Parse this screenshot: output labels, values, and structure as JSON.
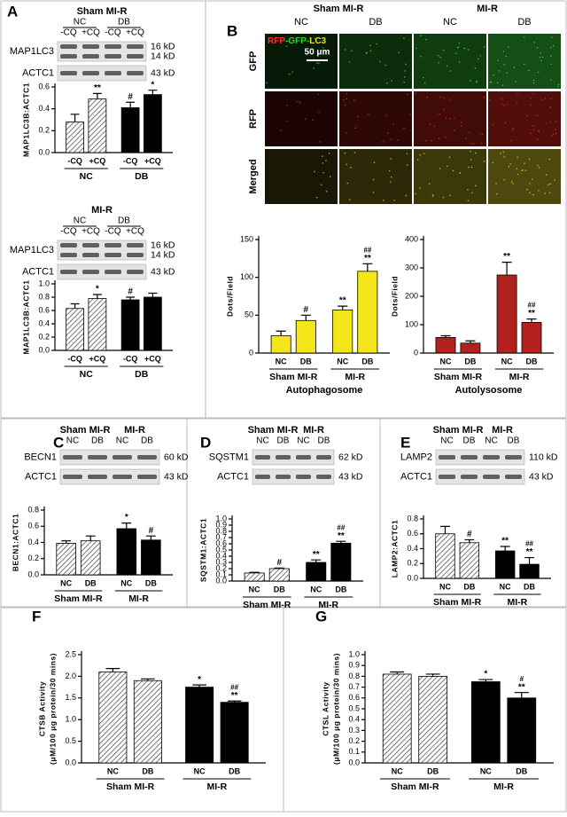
{
  "chart_data": [
    {
      "type": "bar",
      "panel": "A",
      "ylabel": [
        "MAP1LC3B:ACTC1"
      ],
      "blot": {
        "header_rows": [
          [
            "Sham MI-R"
          ],
          [
            "NC",
            "DB"
          ],
          [
            "-CQ",
            "+CQ",
            "-CQ",
            "+CQ"
          ]
        ],
        "rows": [
          {
            "name": "MAP1LC3",
            "kd": [
              "16 kD",
              "14 kD"
            ]
          },
          {
            "name": "ACTC1",
            "kd": [
              "43 kD"
            ]
          }
        ]
      },
      "categories": [
        "-CQ",
        "+CQ",
        "-CQ",
        "+CQ"
      ],
      "groups": [
        "NC",
        "DB"
      ],
      "values": [
        0.28,
        0.49,
        0.41,
        0.53
      ],
      "errors": [
        0.07,
        0.05,
        0.05,
        0.04
      ],
      "colors": [
        "#ffffff",
        "#ffffff",
        "#000000",
        "#000000"
      ],
      "hatch": [
        true,
        true,
        false,
        false
      ],
      "annotations": [
        [],
        [
          "**"
        ],
        [
          "#"
        ],
        [
          "*"
        ]
      ],
      "ylim": [
        0,
        0.6
      ],
      "yticks": [
        {
          "value": 0,
          "label": "0.0"
        },
        0.2,
        0.4,
        0.6
      ]
    },
    {
      "type": "bar",
      "ylabel": [
        "MAP1LC3B:ACTC1"
      ],
      "blot": {
        "header_rows": [
          [
            "MI-R"
          ],
          [
            "NC",
            "DB"
          ],
          [
            "-CQ",
            "+CQ",
            "-CQ",
            "+CQ"
          ]
        ],
        "rows": [
          {
            "name": "MAP1LC3",
            "kd": [
              "16 kD",
              "14 kD"
            ]
          },
          {
            "name": "ACTC1",
            "kd": [
              "43 kD"
            ]
          }
        ]
      },
      "categories": [
        "-CQ",
        "+CQ",
        "-CQ",
        "+CQ"
      ],
      "groups": [
        "NC",
        "DB"
      ],
      "values": [
        0.63,
        0.78,
        0.76,
        0.8
      ],
      "errors": [
        0.07,
        0.06,
        0.04,
        0.06
      ],
      "colors": [
        "#ffffff",
        "#ffffff",
        "#000000",
        "#000000"
      ],
      "hatch": [
        true,
        true,
        false,
        false
      ],
      "annotations": [
        [],
        [
          "*"
        ],
        [
          "#"
        ],
        []
      ],
      "ylim": [
        0,
        1.0
      ],
      "yticks": [
        {
          "value": 0,
          "label": "0.0"
        },
        0.2,
        0.4,
        0.6,
        0.8,
        {
          "value": 1,
          "label": "1.0"
        }
      ]
    },
    {
      "type": "bar",
      "ylabel": [
        "Dots/Field"
      ],
      "xlabel": "Autophagosome",
      "categories": [
        "NC",
        "DB",
        "NC",
        "DB"
      ],
      "groups": [
        "Sham MI-R",
        "MI-R"
      ],
      "values": [
        23,
        43,
        57,
        108
      ],
      "errors": [
        6,
        7,
        5,
        10
      ],
      "colors": [
        "#f5e51b",
        "#f5e51b",
        "#f5e51b",
        "#f5e51b"
      ],
      "hatch": [
        false,
        false,
        false,
        false
      ],
      "annotations": [
        [],
        [
          "#"
        ],
        [
          "**"
        ],
        [
          "**",
          "##"
        ]
      ],
      "ylim": [
        0,
        150
      ],
      "yticks": [
        0,
        50,
        100,
        150
      ]
    },
    {
      "type": "bar",
      "ylabel": [
        "Dots/Field"
      ],
      "xlabel": "Autolysosome",
      "categories": [
        "NC",
        "DB",
        "NC",
        "DB"
      ],
      "groups": [
        "Sham MI-R",
        "MI-R"
      ],
      "values": [
        55,
        35,
        275,
        108
      ],
      "errors": [
        6,
        8,
        45,
        12
      ],
      "colors": [
        "#b3211f",
        "#b3211f",
        "#b3211f",
        "#b3211f"
      ],
      "hatch": [
        false,
        false,
        false,
        false
      ],
      "annotations": [
        [],
        [],
        [
          "**"
        ],
        [
          "**",
          "##"
        ]
      ],
      "ylim": [
        0,
        400
      ],
      "yticks": [
        0,
        100,
        200,
        300,
        400
      ]
    },
    {
      "type": "bar",
      "panel": "C",
      "ylabel": [
        "BECN1:ACTC1"
      ],
      "blot": {
        "header_rows": [
          [
            "Sham MI-R",
            "MI-R"
          ],
          [
            "NC",
            "DB",
            "NC",
            "DB"
          ]
        ],
        "rows": [
          {
            "name": "BECN1",
            "kd": [
              "60 kD"
            ]
          },
          {
            "name": "ACTC1",
            "kd": [
              "43 kD"
            ]
          }
        ]
      },
      "categories": [
        "NC",
        "DB",
        "NC",
        "DB"
      ],
      "groups": [
        "Sham MI-R",
        "MI-R"
      ],
      "values": [
        0.39,
        0.42,
        0.57,
        0.43
      ],
      "errors": [
        0.03,
        0.06,
        0.07,
        0.05
      ],
      "colors": [
        "#ffffff",
        "#ffffff",
        "#000000",
        "#000000"
      ],
      "hatch": [
        true,
        true,
        false,
        false
      ],
      "annotations": [
        [],
        [],
        [
          "*"
        ],
        [
          "#"
        ]
      ],
      "ylim": [
        0,
        0.8
      ],
      "yticks": [
        {
          "value": 0,
          "label": "0.0"
        },
        0.2,
        0.4,
        0.6,
        0.8
      ]
    },
    {
      "type": "bar",
      "panel": "D",
      "ylabel": [
        "SQSTM1:ACTC1"
      ],
      "blot": {
        "header_rows": [
          [
            "Sham MI-R",
            "MI-R"
          ],
          [
            "NC",
            "DB",
            "NC",
            "DB"
          ]
        ],
        "rows": [
          {
            "name": "SQSTM1",
            "kd": [
              "62 kD"
            ]
          },
          {
            "name": "ACTC1",
            "kd": [
              "43 kD"
            ]
          }
        ]
      },
      "categories": [
        "NC",
        "DB",
        "NC",
        "DB"
      ],
      "groups": [
        "Sham MI-R",
        "MI-R"
      ],
      "values": [
        0.13,
        0.2,
        0.3,
        0.61
      ],
      "errors": [
        0.01,
        0.01,
        0.04,
        0.03
      ],
      "colors": [
        "#ffffff",
        "#ffffff",
        "#000000",
        "#000000"
      ],
      "hatch": [
        true,
        true,
        false,
        false
      ],
      "annotations": [
        [],
        [
          "#"
        ],
        [
          "**"
        ],
        [
          "**",
          "##"
        ]
      ],
      "ylim": [
        0,
        1.0
      ],
      "yticks": [
        {
          "value": 0,
          "label": "0.0"
        },
        0.1,
        0.2,
        0.3,
        0.4,
        0.5,
        0.6,
        0.7,
        0.8,
        0.9,
        {
          "value": 1,
          "label": "1.0"
        }
      ]
    },
    {
      "type": "bar",
      "panel": "E",
      "ylabel": [
        "LAMP2:ACTC1"
      ],
      "blot": {
        "header_rows": [
          [
            "Sham MI-R",
            "MI-R"
          ],
          [
            "NC",
            "DB",
            "NC",
            "DB"
          ]
        ],
        "rows": [
          {
            "name": "LAMP2",
            "kd": [
              "110 kD"
            ]
          },
          {
            "name": "ACTC1",
            "kd": [
              "43 kD"
            ]
          }
        ]
      },
      "categories": [
        "NC",
        "DB",
        "NC",
        "DB"
      ],
      "groups": [
        "Sham MI-R",
        "MI-R"
      ],
      "values": [
        0.6,
        0.48,
        0.37,
        0.19
      ],
      "errors": [
        0.1,
        0.04,
        0.06,
        0.09
      ],
      "colors": [
        "#ffffff",
        "#ffffff",
        "#000000",
        "#000000"
      ],
      "hatch": [
        true,
        true,
        false,
        false
      ],
      "annotations": [
        [],
        [
          "#"
        ],
        [
          "**"
        ],
        [
          "**",
          "##"
        ]
      ],
      "ylim": [
        0,
        0.8
      ],
      "yticks": [
        {
          "value": 0,
          "label": "0.0"
        },
        0.2,
        0.4,
        0.6,
        0.8
      ]
    },
    {
      "type": "bar",
      "panel": "F",
      "ylabel": [
        "CTSB Activity",
        "(μM/100 μg protein/30 mins)"
      ],
      "categories": [
        "NC",
        "DB",
        "NC",
        "DB"
      ],
      "groups": [
        "Sham MI-R",
        "MI-R"
      ],
      "values": [
        2.1,
        1.9,
        1.75,
        1.4
      ],
      "errors": [
        0.08,
        0.04,
        0.05,
        0.03
      ],
      "colors": [
        "#ffffff",
        "#ffffff",
        "#000000",
        "#000000"
      ],
      "hatch": [
        true,
        true,
        false,
        false
      ],
      "annotations": [
        [],
        [],
        [
          "*"
        ],
        [
          "**",
          "##"
        ]
      ],
      "ylim": [
        0,
        2.5
      ],
      "yticks": [
        {
          "value": 0,
          "label": "0.0"
        },
        0.5,
        {
          "value": 1,
          "label": "1.0"
        },
        1.5,
        {
          "value": 2,
          "label": "2.0"
        },
        2.5
      ]
    },
    {
      "type": "bar",
      "panel": "G",
      "ylabel": [
        "CTSL Activity",
        "(μM/100 μg protein/30 mins)"
      ],
      "categories": [
        "NC",
        "DB",
        "NC",
        "DB"
      ],
      "groups": [
        "Sham MI-R",
        "MI-R"
      ],
      "values": [
        0.82,
        0.8,
        0.75,
        0.6
      ],
      "errors": [
        0.02,
        0.02,
        0.02,
        0.05
      ],
      "colors": [
        "#ffffff",
        "#ffffff",
        "#000000",
        "#000000"
      ],
      "hatch": [
        true,
        true,
        false,
        false
      ],
      "annotations": [
        [],
        [],
        [
          "*"
        ],
        [
          "**",
          "#"
        ]
      ],
      "ylim": [
        0,
        1.0
      ],
      "yticks": [
        {
          "value": 0,
          "label": "0.0"
        },
        0.1,
        0.2,
        0.3,
        0.4,
        0.5,
        0.6,
        0.7,
        0.8,
        0.9,
        {
          "value": 1,
          "label": "1.0"
        }
      ]
    }
  ],
  "images": {
    "panel": "B",
    "column_groups": [
      "Sham MI-R",
      "MI-R"
    ],
    "columns": [
      "NC",
      "DB",
      "NC",
      "DB"
    ],
    "rows": [
      "GFP",
      "RFP",
      "Merged"
    ],
    "overlay": [
      {
        "text": "RFP",
        "color": "#ff3030"
      },
      {
        "text": "-GFP-",
        "color": "#30d030"
      },
      {
        "text": "LC3",
        "color": "#f0e020"
      }
    ],
    "scale_bar": "50 μm"
  }
}
